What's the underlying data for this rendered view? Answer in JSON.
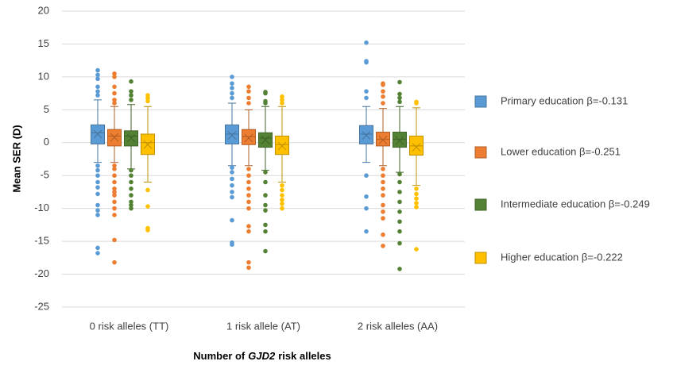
{
  "chart_data": {
    "type": "box",
    "y_label": "Mean SER (D)",
    "x_label": {
      "prefix": "Number of",
      "gene": "GJD2",
      "suffix": "risk alleles"
    },
    "categories": [
      "0 risk alleles (TT)",
      "1 risk allele (AT)",
      "2 risk alleles (AA)"
    ],
    "ylim": [
      -25,
      20
    ],
    "yticks": [
      -25,
      -20,
      -15,
      -10,
      -5,
      0,
      5,
      10,
      15,
      20
    ],
    "grid": true,
    "legend": "right",
    "series": [
      {
        "name": "Primary education  β=-0.131",
        "color": "#5b9bd5",
        "stats": [
          {
            "low": -3,
            "q1": -0.2,
            "median": 1.5,
            "q3": 2.7,
            "high": 6.5,
            "mean": 1.3,
            "outliers": [
              11,
              10.3,
              9.7,
              8.5,
              7.8,
              7.2,
              -3.5,
              -4.2,
              -5,
              -6,
              -6.8,
              -7.8,
              -9.5,
              -10.3,
              -11,
              -16,
              -16.8
            ]
          },
          {
            "low": -3.5,
            "q1": -0.2,
            "median": 1.3,
            "q3": 2.7,
            "high": 6,
            "mean": 1.1,
            "outliers": [
              10,
              9,
              8.3,
              7.5,
              6.8,
              -3.8,
              -4.5,
              -5.5,
              -6.5,
              -7.5,
              -8.3,
              -11.8,
              -15.2,
              -15.5
            ]
          },
          {
            "low": -3,
            "q1": -0.2,
            "median": 1.3,
            "q3": 2.6,
            "high": 5.5,
            "mean": 1.1,
            "outliers": [
              15.2,
              12.4,
              12.2,
              7.8,
              6.8,
              -5,
              -8.2,
              -10,
              -13.5
            ]
          }
        ]
      },
      {
        "name": "Lower education  β=-0.251",
        "color": "#ed7d31",
        "stats": [
          {
            "low": -3,
            "q1": -0.5,
            "median": 1,
            "q3": 2,
            "high": 5.5,
            "mean": 0.8,
            "outliers": [
              10.5,
              10,
              8.5,
              7.5,
              6.5,
              6,
              -3.5,
              -4,
              -5,
              -6,
              -7,
              -7.5,
              -8,
              -9,
              -10,
              -11,
              -14.8,
              -18.2
            ]
          },
          {
            "low": -3.5,
            "q1": -0.3,
            "median": 0.9,
            "q3": 2,
            "high": 5,
            "mean": 0.7,
            "outliers": [
              8.5,
              7.8,
              6.8,
              6,
              -4,
              -5,
              -6,
              -7,
              -8,
              -9,
              -10,
              -12.7,
              -13.5,
              -18.2,
              -19
            ]
          },
          {
            "low": -3.5,
            "q1": -0.5,
            "median": 0.5,
            "q3": 1.6,
            "high": 5.2,
            "mean": 0.4,
            "outliers": [
              9,
              8.8,
              7.8,
              7,
              6,
              -4,
              -5,
              -6,
              -7,
              -8,
              -9.5,
              -10.5,
              -11.5,
              -14,
              -15.7
            ]
          }
        ]
      },
      {
        "name": "Intermediate education  β=-0.249",
        "color": "#548235",
        "stats": [
          {
            "low": -4,
            "q1": -0.5,
            "median": 1,
            "q3": 1.8,
            "high": 5.8,
            "mean": 0.7,
            "outliers": [
              9.3,
              7.8,
              7.2,
              6.5,
              -4.2,
              -5,
              -6,
              -7,
              -8,
              -9,
              -9.5,
              -10
            ]
          },
          {
            "low": -4.2,
            "q1": -0.7,
            "median": 0.7,
            "q3": 1.5,
            "high": 5.5,
            "mean": 0.4,
            "outliers": [
              7.7,
              7.5,
              6.3,
              6,
              -4.5,
              -6,
              -8,
              -9.5,
              -10.3,
              -12.5,
              -13.5,
              -16.5
            ]
          },
          {
            "low": -4.5,
            "q1": -0.7,
            "median": 0.5,
            "q3": 1.6,
            "high": 5.5,
            "mean": 0.3,
            "outliers": [
              9.2,
              7.4,
              6.8,
              6.2,
              -4.8,
              -6,
              -7.5,
              -9,
              -10.5,
              -12,
              -13.5,
              -15.3,
              -19.2
            ]
          }
        ]
      },
      {
        "name": "Higher education  β=-0.222",
        "color": "#ffc000",
        "stats": [
          {
            "low": -6,
            "q1": -1.8,
            "median": 0,
            "q3": 1.3,
            "high": 5.5,
            "mean": -0.3,
            "outliers": [
              7.2,
              6.8,
              6.3,
              -7.2,
              -9.7,
              -13,
              -13.3
            ]
          },
          {
            "low": -6,
            "q1": -1.8,
            "median": -0.3,
            "q3": 1,
            "high": 5.5,
            "mean": -0.5,
            "outliers": [
              7,
              6.5,
              6,
              -6.5,
              -7.2,
              -8,
              -8.7,
              -9.3,
              -10
            ]
          },
          {
            "low": -6.5,
            "q1": -1.9,
            "median": -0.5,
            "q3": 1,
            "high": 5.3,
            "mean": -0.7,
            "outliers": [
              6.2,
              6,
              -7,
              -7.8,
              -8.5,
              -9.2,
              -9.8,
              -16.2
            ]
          }
        ]
      }
    ]
  }
}
